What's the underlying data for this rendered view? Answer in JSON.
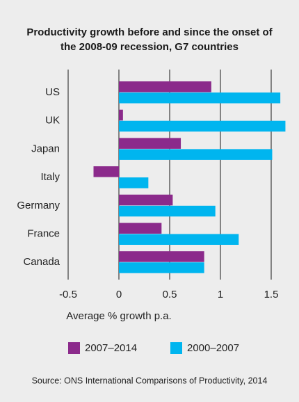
{
  "chart_data": {
    "type": "bar",
    "orientation": "horizontal",
    "title": "Productivity growth before and since the onset of the 2008-09 recession, G7 countries",
    "categories": [
      "US",
      "UK",
      "Japan",
      "Italy",
      "Germany",
      "France",
      "Canada"
    ],
    "series": [
      {
        "name": "2007–2014",
        "color": "#8b2a8b",
        "values": [
          0.91,
          0.04,
          0.61,
          -0.25,
          0.53,
          0.42,
          0.84
        ]
      },
      {
        "name": "2000–2007",
        "color": "#00b5ef",
        "values": [
          1.59,
          1.64,
          1.51,
          0.29,
          0.95,
          1.18,
          0.84
        ]
      }
    ],
    "xlim": [
      -0.5,
      1.65
    ],
    "xticks": [
      -0.5,
      0,
      0.5,
      1,
      1.5
    ],
    "xlabel": "Average % growth p.a.",
    "grid": true,
    "legend": "bottom",
    "source": "Source: ONS International Comparisons of Productivity, 2014"
  }
}
